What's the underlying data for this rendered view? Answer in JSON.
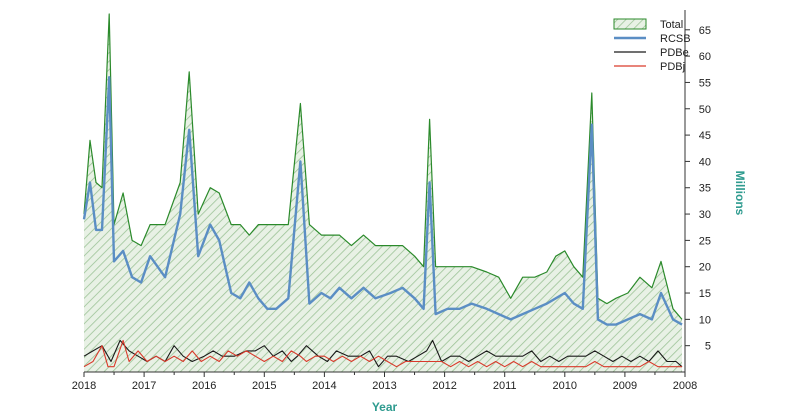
{
  "chart_data": {
    "type": "line",
    "title": "",
    "xlabel": "Year",
    "ylabel": "Millions",
    "x_ticks": [
      "2018",
      "2017",
      "2016",
      "2015",
      "2014",
      "2013",
      "2012",
      "2011",
      "2010",
      "2009",
      "2008"
    ],
    "y_ticks": [
      5,
      10,
      15,
      20,
      25,
      30,
      35,
      40,
      45,
      50,
      55,
      60,
      65
    ],
    "xlim": [
      2018.0,
      2008.0
    ],
    "ylim": [
      0,
      68
    ],
    "grid": false,
    "legend_position": "top-right",
    "colors": {
      "Total": "#2b8a2b",
      "Total_fill": "#cfe3cc",
      "RCSB": "#5b8ec4",
      "PDBe": "#1a1a1a",
      "PDBj": "#d93a2b"
    },
    "series": [
      {
        "name": "Total",
        "style": "hatched-area",
        "points": [
          [
            2018.0,
            30
          ],
          [
            2017.9,
            44
          ],
          [
            2017.8,
            36
          ],
          [
            2017.7,
            35
          ],
          [
            2017.58,
            68
          ],
          [
            2017.5,
            28
          ],
          [
            2017.35,
            34
          ],
          [
            2017.2,
            25
          ],
          [
            2017.05,
            24
          ],
          [
            2016.9,
            28
          ],
          [
            2016.65,
            28
          ],
          [
            2016.4,
            36
          ],
          [
            2016.25,
            57
          ],
          [
            2016.1,
            30
          ],
          [
            2015.9,
            35
          ],
          [
            2015.75,
            34
          ],
          [
            2015.55,
            28
          ],
          [
            2015.4,
            28
          ],
          [
            2015.25,
            26
          ],
          [
            2015.1,
            28
          ],
          [
            2014.95,
            28
          ],
          [
            2014.8,
            28
          ],
          [
            2014.6,
            28
          ],
          [
            2014.4,
            51
          ],
          [
            2014.25,
            28
          ],
          [
            2014.05,
            26
          ],
          [
            2013.9,
            26
          ],
          [
            2013.75,
            26
          ],
          [
            2013.55,
            24
          ],
          [
            2013.35,
            26
          ],
          [
            2013.15,
            24
          ],
          [
            2012.9,
            24
          ],
          [
            2012.7,
            24
          ],
          [
            2012.5,
            22
          ],
          [
            2012.35,
            20
          ],
          [
            2012.25,
            48
          ],
          [
            2012.15,
            20
          ],
          [
            2011.95,
            20
          ],
          [
            2011.75,
            20
          ],
          [
            2011.55,
            20
          ],
          [
            2011.3,
            19
          ],
          [
            2011.1,
            18
          ],
          [
            2010.9,
            14
          ],
          [
            2010.7,
            18
          ],
          [
            2010.5,
            18
          ],
          [
            2010.3,
            19
          ],
          [
            2010.15,
            22
          ],
          [
            2010.0,
            23
          ],
          [
            2009.85,
            20
          ],
          [
            2009.7,
            18
          ],
          [
            2009.55,
            53
          ],
          [
            2009.45,
            14
          ],
          [
            2009.3,
            13
          ],
          [
            2009.15,
            14
          ],
          [
            2008.95,
            15
          ],
          [
            2008.75,
            18
          ],
          [
            2008.55,
            16
          ],
          [
            2008.4,
            21
          ],
          [
            2008.2,
            12
          ],
          [
            2008.05,
            10
          ]
        ]
      },
      {
        "name": "RCSB",
        "points": [
          [
            2018.0,
            29
          ],
          [
            2017.9,
            36
          ],
          [
            2017.8,
            27
          ],
          [
            2017.7,
            27
          ],
          [
            2017.58,
            56
          ],
          [
            2017.5,
            21
          ],
          [
            2017.35,
            23
          ],
          [
            2017.2,
            18
          ],
          [
            2017.05,
            17
          ],
          [
            2016.9,
            22
          ],
          [
            2016.65,
            18
          ],
          [
            2016.4,
            30
          ],
          [
            2016.25,
            46
          ],
          [
            2016.1,
            22
          ],
          [
            2015.9,
            28
          ],
          [
            2015.75,
            25
          ],
          [
            2015.55,
            15
          ],
          [
            2015.4,
            14
          ],
          [
            2015.25,
            17
          ],
          [
            2015.1,
            14
          ],
          [
            2014.95,
            12
          ],
          [
            2014.8,
            12
          ],
          [
            2014.6,
            14
          ],
          [
            2014.4,
            40
          ],
          [
            2014.25,
            13
          ],
          [
            2014.05,
            15
          ],
          [
            2013.9,
            14
          ],
          [
            2013.75,
            16
          ],
          [
            2013.55,
            14
          ],
          [
            2013.35,
            16
          ],
          [
            2013.15,
            14
          ],
          [
            2012.9,
            15
          ],
          [
            2012.7,
            16
          ],
          [
            2012.5,
            14
          ],
          [
            2012.35,
            12
          ],
          [
            2012.25,
            36
          ],
          [
            2012.15,
            11
          ],
          [
            2011.95,
            12
          ],
          [
            2011.75,
            12
          ],
          [
            2011.55,
            13
          ],
          [
            2011.3,
            12
          ],
          [
            2011.1,
            11
          ],
          [
            2010.9,
            10
          ],
          [
            2010.7,
            11
          ],
          [
            2010.5,
            12
          ],
          [
            2010.3,
            13
          ],
          [
            2010.15,
            14
          ],
          [
            2010.0,
            15
          ],
          [
            2009.85,
            13
          ],
          [
            2009.7,
            12
          ],
          [
            2009.55,
            47
          ],
          [
            2009.45,
            10
          ],
          [
            2009.3,
            9
          ],
          [
            2009.15,
            9
          ],
          [
            2008.95,
            10
          ],
          [
            2008.75,
            11
          ],
          [
            2008.55,
            10
          ],
          [
            2008.4,
            15
          ],
          [
            2008.2,
            10
          ],
          [
            2008.05,
            9
          ]
        ]
      },
      {
        "name": "PDBe",
        "points": [
          [
            2018.0,
            3
          ],
          [
            2017.85,
            4
          ],
          [
            2017.7,
            5
          ],
          [
            2017.55,
            2
          ],
          [
            2017.4,
            6
          ],
          [
            2017.25,
            4
          ],
          [
            2017.1,
            3
          ],
          [
            2016.95,
            2
          ],
          [
            2016.8,
            3
          ],
          [
            2016.65,
            2
          ],
          [
            2016.5,
            5
          ],
          [
            2016.35,
            3
          ],
          [
            2016.2,
            2
          ],
          [
            2016.0,
            3
          ],
          [
            2015.85,
            4
          ],
          [
            2015.7,
            3
          ],
          [
            2015.5,
            3
          ],
          [
            2015.3,
            4
          ],
          [
            2015.15,
            4
          ],
          [
            2015.0,
            5
          ],
          [
            2014.85,
            3
          ],
          [
            2014.7,
            4
          ],
          [
            2014.55,
            2
          ],
          [
            2014.45,
            3
          ],
          [
            2014.3,
            5
          ],
          [
            2014.1,
            3
          ],
          [
            2013.95,
            2
          ],
          [
            2013.8,
            4
          ],
          [
            2013.6,
            3
          ],
          [
            2013.4,
            3
          ],
          [
            2013.25,
            4
          ],
          [
            2013.1,
            1
          ],
          [
            2012.95,
            3
          ],
          [
            2012.8,
            3
          ],
          [
            2012.6,
            2
          ],
          [
            2012.45,
            3
          ],
          [
            2012.3,
            4
          ],
          [
            2012.2,
            6
          ],
          [
            2012.05,
            2
          ],
          [
            2011.9,
            3
          ],
          [
            2011.75,
            3
          ],
          [
            2011.6,
            2
          ],
          [
            2011.45,
            3
          ],
          [
            2011.3,
            4
          ],
          [
            2011.15,
            3
          ],
          [
            2011.0,
            3
          ],
          [
            2010.85,
            3
          ],
          [
            2010.7,
            3
          ],
          [
            2010.55,
            4
          ],
          [
            2010.4,
            2
          ],
          [
            2010.25,
            3
          ],
          [
            2010.1,
            2
          ],
          [
            2009.95,
            3
          ],
          [
            2009.8,
            3
          ],
          [
            2009.65,
            3
          ],
          [
            2009.5,
            4
          ],
          [
            2009.35,
            3
          ],
          [
            2009.2,
            2
          ],
          [
            2009.05,
            3
          ],
          [
            2008.9,
            2
          ],
          [
            2008.75,
            3
          ],
          [
            2008.6,
            2
          ],
          [
            2008.45,
            4
          ],
          [
            2008.3,
            2
          ],
          [
            2008.15,
            2
          ],
          [
            2008.05,
            1
          ]
        ]
      },
      {
        "name": "PDBj",
        "points": [
          [
            2018.0,
            1
          ],
          [
            2017.85,
            2
          ],
          [
            2017.7,
            5
          ],
          [
            2017.6,
            1
          ],
          [
            2017.5,
            1
          ],
          [
            2017.35,
            6
          ],
          [
            2017.25,
            2
          ],
          [
            2017.1,
            4
          ],
          [
            2016.95,
            2
          ],
          [
            2016.8,
            3
          ],
          [
            2016.65,
            2
          ],
          [
            2016.5,
            3
          ],
          [
            2016.35,
            2
          ],
          [
            2016.2,
            4
          ],
          [
            2016.05,
            2
          ],
          [
            2015.9,
            3
          ],
          [
            2015.75,
            2
          ],
          [
            2015.6,
            4
          ],
          [
            2015.45,
            3
          ],
          [
            2015.3,
            4
          ],
          [
            2015.15,
            3
          ],
          [
            2015.0,
            2
          ],
          [
            2014.85,
            3
          ],
          [
            2014.7,
            2
          ],
          [
            2014.55,
            4
          ],
          [
            2014.4,
            3
          ],
          [
            2014.3,
            2
          ],
          [
            2014.15,
            3
          ],
          [
            2014.0,
            3
          ],
          [
            2013.85,
            2
          ],
          [
            2013.7,
            3
          ],
          [
            2013.55,
            2
          ],
          [
            2013.4,
            3
          ],
          [
            2013.25,
            2
          ],
          [
            2013.1,
            3
          ],
          [
            2012.95,
            2
          ],
          [
            2012.8,
            1
          ],
          [
            2012.65,
            2
          ],
          [
            2012.5,
            2
          ],
          [
            2012.35,
            2
          ],
          [
            2012.2,
            2
          ],
          [
            2012.05,
            2
          ],
          [
            2011.9,
            1
          ],
          [
            2011.75,
            2
          ],
          [
            2011.6,
            1
          ],
          [
            2011.45,
            2
          ],
          [
            2011.3,
            1
          ],
          [
            2011.15,
            2
          ],
          [
            2011.0,
            1
          ],
          [
            2010.85,
            2
          ],
          [
            2010.7,
            1
          ],
          [
            2010.55,
            2
          ],
          [
            2010.4,
            1
          ],
          [
            2010.25,
            1
          ],
          [
            2010.1,
            1
          ],
          [
            2009.95,
            1
          ],
          [
            2009.8,
            1
          ],
          [
            2009.65,
            1
          ],
          [
            2009.5,
            2
          ],
          [
            2009.35,
            1
          ],
          [
            2009.2,
            1
          ],
          [
            2009.05,
            1
          ],
          [
            2008.9,
            1
          ],
          [
            2008.75,
            1
          ],
          [
            2008.6,
            2
          ],
          [
            2008.45,
            1
          ],
          [
            2008.3,
            1
          ],
          [
            2008.15,
            1
          ],
          [
            2008.05,
            1
          ]
        ]
      }
    ]
  }
}
